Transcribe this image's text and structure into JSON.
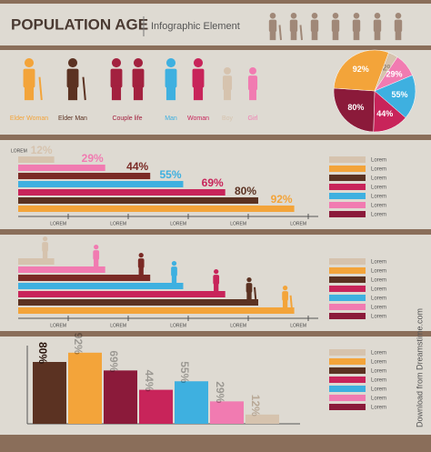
{
  "header": {
    "title": "POPULATION AGE",
    "subtitle": "Infographic Element"
  },
  "people": [
    {
      "label": "Elder Woman",
      "color": "#f3a43a"
    },
    {
      "label": "Elder Man",
      "color": "#5b3222"
    },
    {
      "label": "Couple life",
      "color": "#a3213f"
    },
    {
      "label": "Man",
      "color": "#3eb0e0"
    },
    {
      "label": "Woman",
      "color": "#c8245a"
    },
    {
      "label": "Boy",
      "color": "#d6c3ae"
    },
    {
      "label": "Girl",
      "color": "#f17bb1"
    }
  ],
  "pie": {
    "values": [
      12,
      29,
      55,
      44,
      80,
      92
    ],
    "value_labels": [
      "12%",
      "29%",
      "55%",
      "44%",
      "80%",
      "92%"
    ],
    "colors": [
      "#d6c3ae",
      "#f17bb1",
      "#3eb0e0",
      "#c8245a",
      "#8b1a3a",
      "#f3a43a"
    ]
  },
  "bars": {
    "values": [
      12,
      29,
      44,
      55,
      69,
      80,
      92
    ],
    "value_labels": [
      "12%",
      "29%",
      "44%",
      "55%",
      "69%",
      "80%",
      "92%"
    ],
    "colors": [
      "#d6c3ae",
      "#f17bb1",
      "#7a2a25",
      "#3eb0e0",
      "#c8245a",
      "#5b3222",
      "#f3a43a"
    ],
    "axis_title": "LOREM",
    "axis_labels": [
      "LOREM",
      "LOREM",
      "LOREM",
      "LOREM",
      "LOREM"
    ]
  },
  "legend": {
    "labels": [
      "Lorem",
      "Lorem",
      "Lorem",
      "Lorem",
      "Lorem",
      "Lorem",
      "Lorem"
    ],
    "colors": [
      "#d6c3ae",
      "#f3a43a",
      "#5b3222",
      "#c8245a",
      "#3eb0e0",
      "#f17bb1",
      "#8b1a3a"
    ]
  },
  "columns": {
    "values": [
      80,
      92,
      69,
      44,
      55,
      29,
      12
    ],
    "value_labels": [
      "80%",
      "92%",
      "69%",
      "44%",
      "55%",
      "29%",
      "12%"
    ],
    "colors": [
      "#5b3222",
      "#f3a43a",
      "#8b1a3a",
      "#c8245a",
      "#3eb0e0",
      "#f17bb1",
      "#d6c3ae"
    ]
  },
  "watermark": "Download from Dreamstime.com"
}
